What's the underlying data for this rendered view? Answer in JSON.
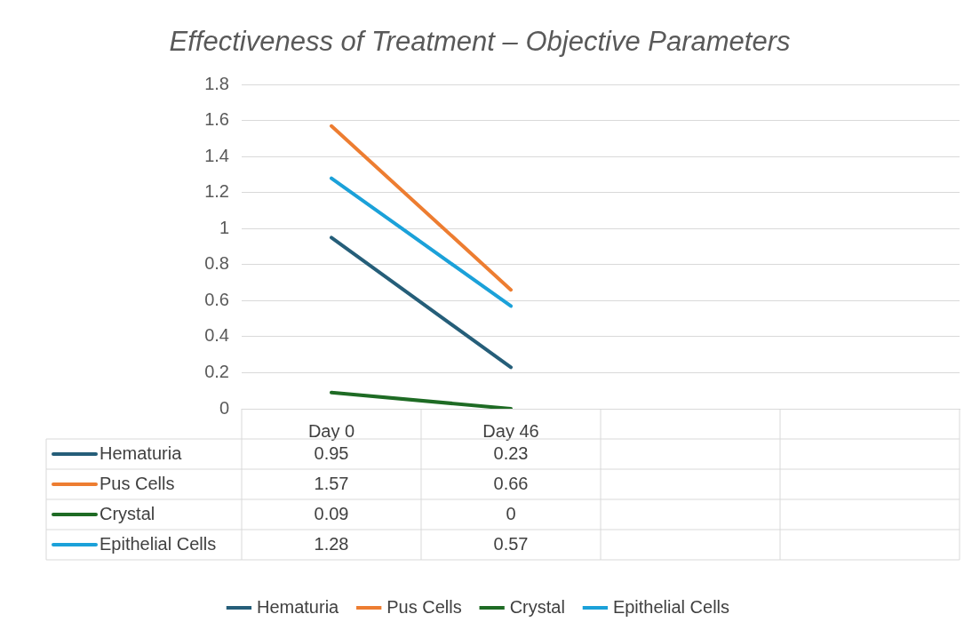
{
  "chart_data": {
    "type": "line",
    "title": "Effectiveness of Treatment – Objective Parameters",
    "categories": [
      "Day 0",
      "Day 46",
      null,
      null
    ],
    "series": [
      {
        "name": "Hematuria",
        "color": "#255e79",
        "values": [
          0.95,
          0.23,
          null,
          null
        ]
      },
      {
        "name": "Pus Cells",
        "color": "#ed7d31",
        "values": [
          1.57,
          0.66,
          null,
          null
        ]
      },
      {
        "name": "Crystal",
        "color": "#1e6b24",
        "values": [
          0.09,
          0,
          null,
          null
        ]
      },
      {
        "name": "Epithelial Cells",
        "color": "#1ba1d9",
        "values": [
          1.28,
          0.57,
          null,
          null
        ]
      }
    ],
    "ylim": [
      0,
      1.8
    ],
    "yticks": [
      0,
      0.2,
      0.4,
      0.6,
      0.8,
      1,
      1.2,
      1.4,
      1.6,
      1.8
    ],
    "grid": "y",
    "legend": "bottom",
    "marker": "none",
    "data_labels": true
  }
}
